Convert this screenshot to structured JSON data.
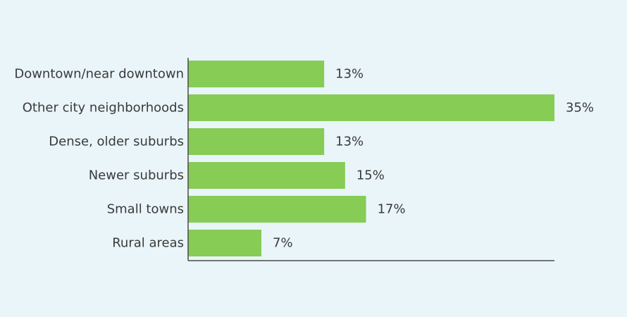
{
  "chart_data": {
    "type": "bar",
    "orientation": "horizontal",
    "categories": [
      "Downtown/near downtown",
      "Other city neighborhoods",
      "Dense, older suburbs",
      "Newer suburbs",
      "Small towns",
      "Rural areas"
    ],
    "values": [
      13,
      35,
      13,
      15,
      17,
      7
    ],
    "value_labels": [
      "13%",
      "35%",
      "13%",
      "15%",
      "17%",
      "7%"
    ],
    "unit": "%",
    "xlim": [
      0,
      35
    ],
    "bar_color": "#86cc55",
    "background_color": "#e9f5f9",
    "title": "",
    "xlabel": "",
    "ylabel": "",
    "grid": false,
    "legend": "none"
  }
}
